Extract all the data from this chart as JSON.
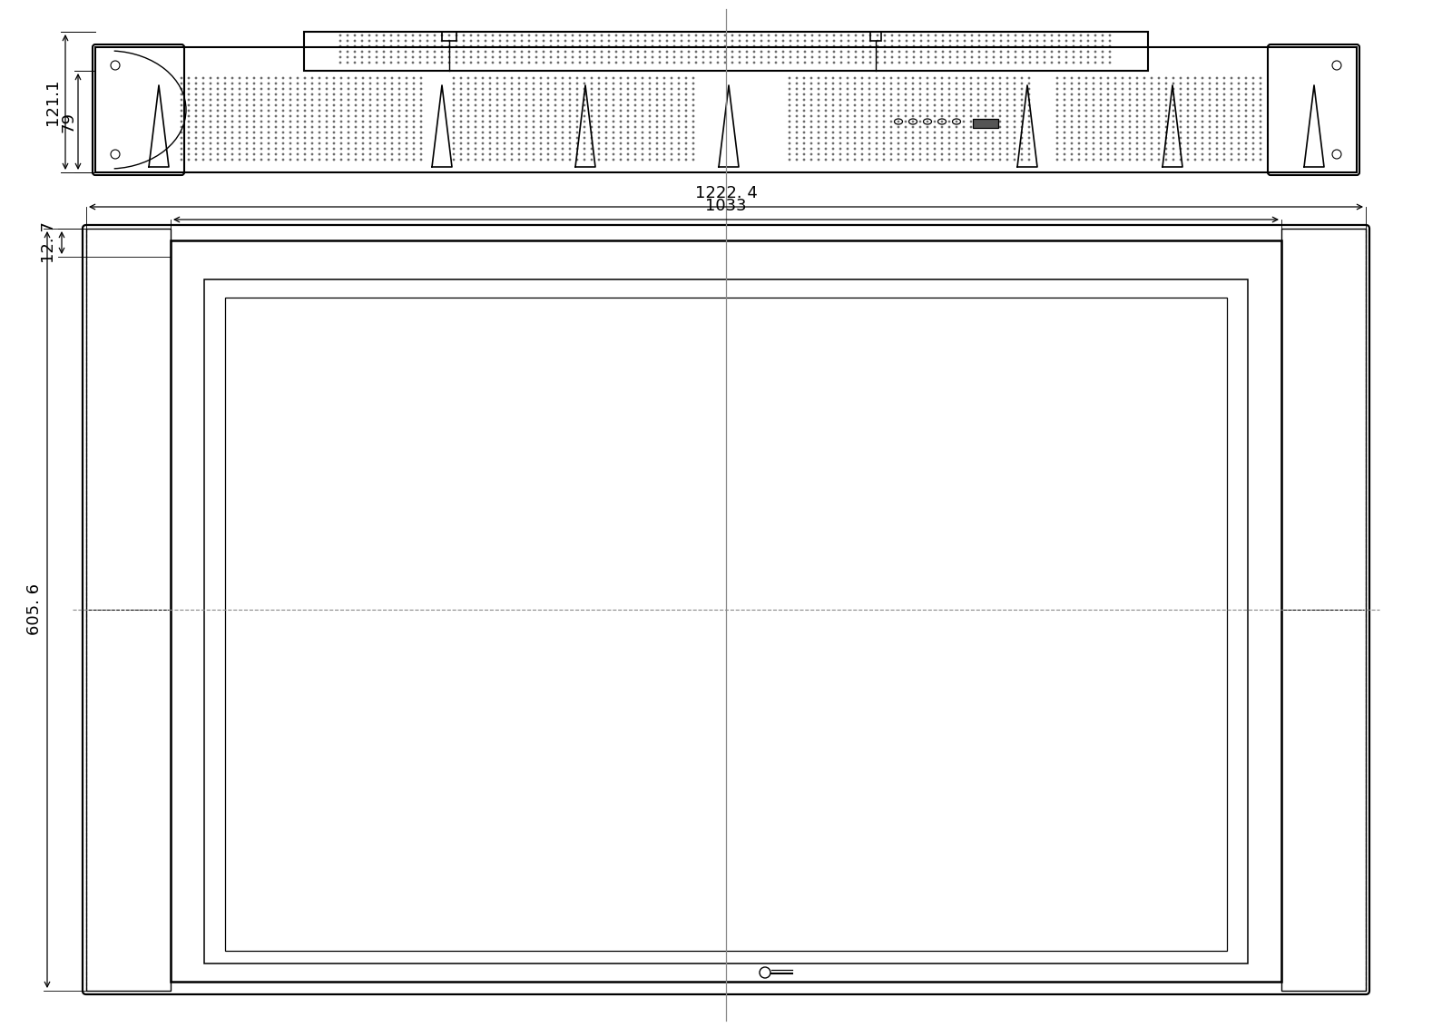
{
  "bg_color": "#ffffff",
  "line_color": "#000000",
  "dim_color": "#000000",
  "top_view": {
    "dim_121": "121.1",
    "dim_79": "79"
  },
  "front_view": {
    "dim_1222": "1222. 4",
    "dim_1033": "1033",
    "dim_605": "605. 6",
    "dim_12": "12. 7"
  },
  "annotation_fontsize": 13
}
